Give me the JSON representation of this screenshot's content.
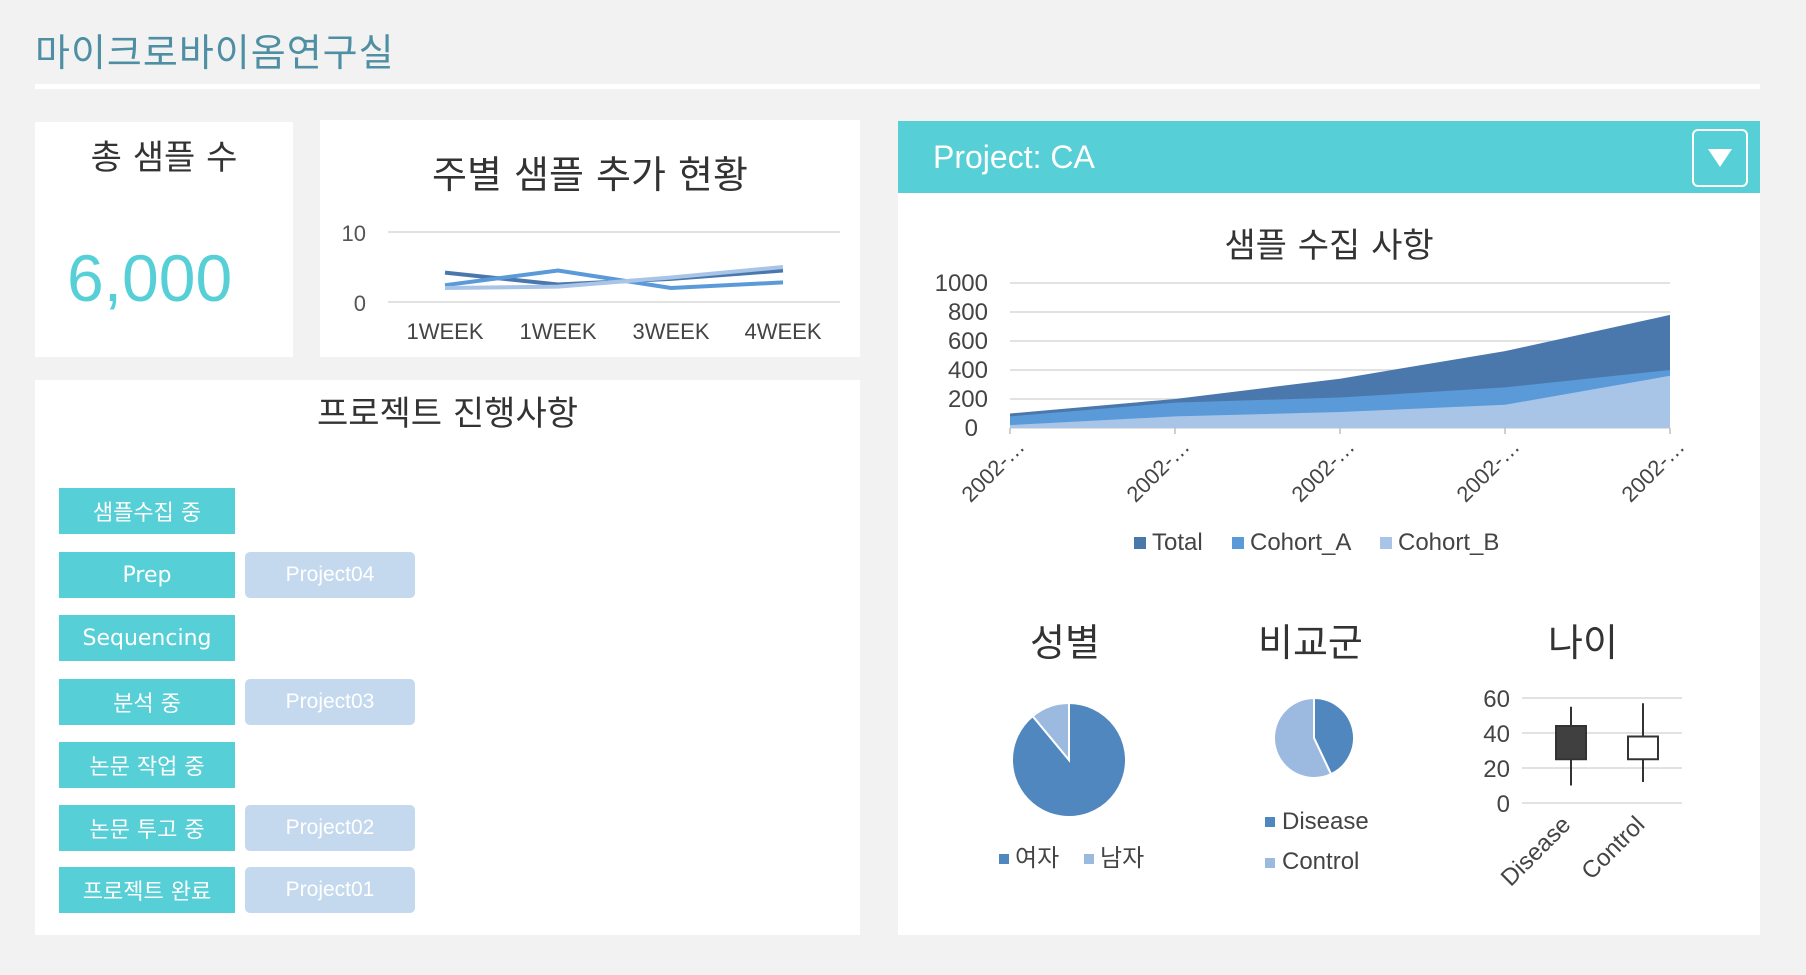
{
  "page": {
    "title": "마이크로바이옴연구실"
  },
  "total_card": {
    "label": "총 샘플 수",
    "value": "6,000"
  },
  "weekly_chart": {
    "title": "주별 샘플 추가 현황",
    "y_ticks": [
      "10",
      "0"
    ],
    "x_labels": [
      "1WEEK",
      "1WEEK",
      "3WEEK",
      "4WEEK"
    ]
  },
  "progress": {
    "title": "프로젝트 진행사항",
    "stages": [
      {
        "label": "샘플수집 중",
        "project": ""
      },
      {
        "label": "Prep",
        "project": "Project04"
      },
      {
        "label": "Sequencing",
        "project": ""
      },
      {
        "label": "분석 중",
        "project": "Project03"
      },
      {
        "label": "논문 작업 중",
        "project": ""
      },
      {
        "label": "논문 투고 중",
        "project": "Project02"
      },
      {
        "label": "프로젝트 완료",
        "project": "Project01"
      }
    ]
  },
  "project_panel": {
    "label": "Project: CA",
    "dropdown_icon": "triangle-down-icon"
  },
  "collection_chart": {
    "title": "샘플 수집 사항",
    "y_ticks": [
      "1000",
      "800",
      "600",
      "400",
      "200",
      "0"
    ],
    "x_labels": [
      "2002-…",
      "2002-…",
      "2002-…",
      "2002-…",
      "2002-…"
    ],
    "legend": [
      "Total",
      "Cohort_A",
      "Cohort_B"
    ]
  },
  "gender_chart": {
    "title": "성별",
    "legend": [
      "여자",
      "남자"
    ]
  },
  "group_chart": {
    "title": "비교군",
    "legend": [
      "Disease",
      "Control"
    ]
  },
  "age_chart": {
    "title": "나이",
    "y_ticks": [
      "60",
      "40",
      "20",
      "0"
    ],
    "x_labels": [
      "Disease",
      "Control"
    ]
  },
  "colors": {
    "accent": "#56cfd6",
    "title": "#4f8fa3",
    "total": "#4a78ad",
    "cohort_a": "#5a9ad8",
    "cohort_b": "#a8c4e6",
    "project_tag": "#c4d8ee"
  },
  "chart_data": [
    {
      "type": "line",
      "title": "주별 샘플 추가 현황",
      "categories": [
        "1WEEK",
        "1WEEK",
        "3WEEK",
        "4WEEK"
      ],
      "ylim": [
        0,
        10
      ],
      "grid": true,
      "series": [
        {
          "values": [
            4.2,
            2.5,
            3.3,
            4.5
          ]
        },
        {
          "values": [
            2.4,
            4.5,
            2.0,
            2.8
          ]
        },
        {
          "values": [
            2.0,
            2.2,
            3.5,
            5.0
          ]
        }
      ]
    },
    {
      "type": "area",
      "title": "샘플 수집 사항",
      "categories": [
        "2002-…",
        "2002-…",
        "2002-…",
        "2002-…",
        "2002-…"
      ],
      "ylim": [
        0,
        1000
      ],
      "legend_position": "bottom",
      "series": [
        {
          "name": "Total",
          "values": [
            100,
            200,
            340,
            530,
            780
          ]
        },
        {
          "name": "Cohort_A",
          "values": [
            80,
            175,
            210,
            280,
            400
          ]
        },
        {
          "name": "Cohort_B",
          "values": [
            20,
            80,
            110,
            160,
            360
          ]
        }
      ]
    },
    {
      "type": "pie",
      "title": "성별",
      "labels": [
        "여자",
        "남자"
      ],
      "values": [
        89,
        11
      ],
      "legend_position": "bottom"
    },
    {
      "type": "pie",
      "title": "비교군",
      "labels": [
        "Disease",
        "Control"
      ],
      "values": [
        43,
        57
      ],
      "legend_position": "bottom"
    },
    {
      "type": "candlestick",
      "title": "나이",
      "categories": [
        "Disease",
        "Control"
      ],
      "ylim": [
        0,
        60
      ],
      "boxes": [
        {
          "category": "Disease",
          "low": 10,
          "q1": 25,
          "q3": 44,
          "high": 55
        },
        {
          "category": "Control",
          "low": 12,
          "q1": 25,
          "q3": 38,
          "high": 57
        }
      ]
    }
  ]
}
